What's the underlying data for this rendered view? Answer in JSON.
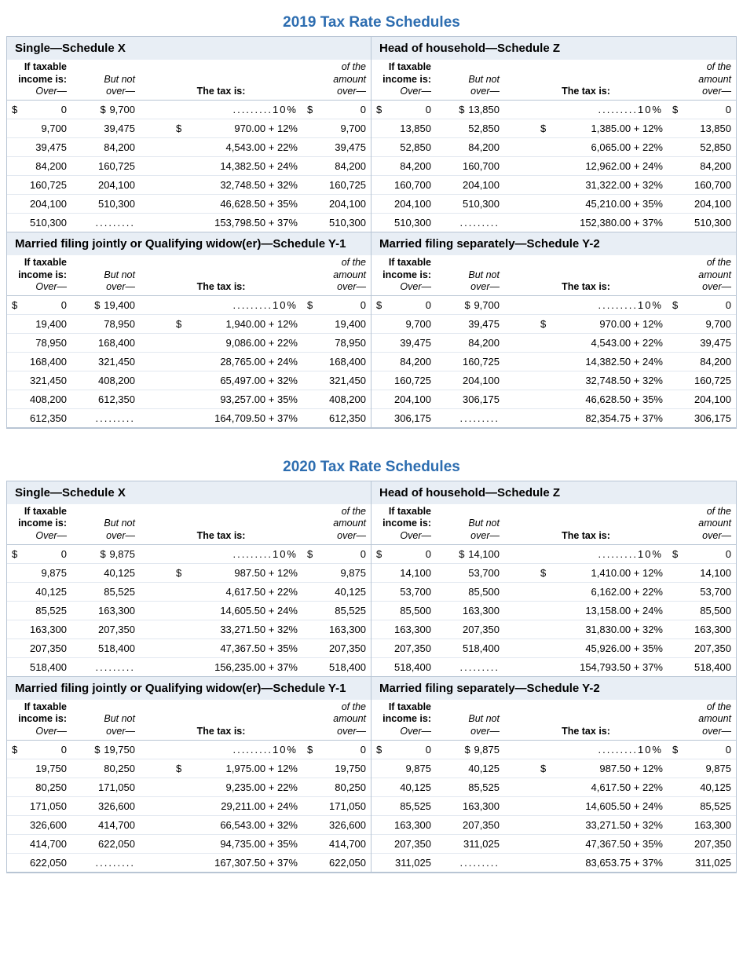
{
  "title_color": "#2d6db0",
  "header_bg": "#e8eef5",
  "border_color": "#b8c5d4",
  "row_border": "#e2e8f0",
  "col_header": {
    "over_line1": "If taxable",
    "over_line2": "income is:",
    "over_line3": "Over—",
    "notover_line1": "But not",
    "notover_line2": "over—",
    "tax": "The tax is:",
    "amt_line1": "of the",
    "amt_line2": "amount",
    "amt_line3": "over—"
  },
  "years": [
    {
      "title": "2019 Tax Rate Schedules",
      "panels": [
        {
          "name": "Single—Schedule X",
          "rows": [
            {
              "over": "0",
              "over_ds": true,
              "notover": "9,700",
              "notover_ds": true,
              "tax": ".........10%",
              "tax_ds": false,
              "amt": "0",
              "amt_ds": true
            },
            {
              "over": "9,700",
              "notover": "39,475",
              "tax": "970.00 + 12%",
              "tax_ds": true,
              "amt": "9,700"
            },
            {
              "over": "39,475",
              "notover": "84,200",
              "tax": "4,543.00 + 22%",
              "amt": "39,475"
            },
            {
              "over": "84,200",
              "notover": "160,725",
              "tax": "14,382.50 + 24%",
              "amt": "84,200"
            },
            {
              "over": "160,725",
              "notover": "204,100",
              "tax": "32,748.50 + 32%",
              "amt": "160,725"
            },
            {
              "over": "204,100",
              "notover": "510,300",
              "tax": "46,628.50 + 35%",
              "amt": "204,100"
            },
            {
              "over": "510,300",
              "notover": ".........",
              "tax": "153,798.50 + 37%",
              "amt": "510,300"
            }
          ]
        },
        {
          "name": "Head of household—Schedule Z",
          "rows": [
            {
              "over": "0",
              "over_ds": true,
              "notover": "13,850",
              "notover_ds": true,
              "tax": ".........10%",
              "amt": "0",
              "amt_ds": true
            },
            {
              "over": "13,850",
              "notover": "52,850",
              "tax": "1,385.00 + 12%",
              "tax_ds": true,
              "amt": "13,850"
            },
            {
              "over": "52,850",
              "notover": "84,200",
              "tax": "6,065.00 + 22%",
              "amt": "52,850"
            },
            {
              "over": "84,200",
              "notover": "160,700",
              "tax": "12,962.00 + 24%",
              "amt": "84,200"
            },
            {
              "over": "160,700",
              "notover": "204,100",
              "tax": "31,322.00 + 32%",
              "amt": "160,700"
            },
            {
              "over": "204,100",
              "notover": "510,300",
              "tax": "45,210.00 + 35%",
              "amt": "204,100"
            },
            {
              "over": "510,300",
              "notover": ".........",
              "tax": "152,380.00 + 37%",
              "amt": "510,300"
            }
          ]
        },
        {
          "name": "Married filing jointly or Qualifying widow(er)—Schedule Y-1",
          "rows": [
            {
              "over": "0",
              "over_ds": true,
              "notover": "19,400",
              "notover_ds": true,
              "tax": ".........10%",
              "amt": "0",
              "amt_ds": true
            },
            {
              "over": "19,400",
              "notover": "78,950",
              "tax": "1,940.00 + 12%",
              "tax_ds": true,
              "amt": "19,400"
            },
            {
              "over": "78,950",
              "notover": "168,400",
              "tax": "9,086.00 + 22%",
              "amt": "78,950"
            },
            {
              "over": "168,400",
              "notover": "321,450",
              "tax": "28,765.00 + 24%",
              "amt": "168,400"
            },
            {
              "over": "321,450",
              "notover": "408,200",
              "tax": "65,497.00 + 32%",
              "amt": "321,450"
            },
            {
              "over": "408,200",
              "notover": "612,350",
              "tax": "93,257.00 + 35%",
              "amt": "408,200"
            },
            {
              "over": "612,350",
              "notover": ".........",
              "tax": "164,709.50 + 37%",
              "amt": "612,350"
            }
          ]
        },
        {
          "name": "Married filing separately—Schedule Y-2",
          "rows": [
            {
              "over": "0",
              "over_ds": true,
              "notover": "9,700",
              "notover_ds": true,
              "tax": ".........10%",
              "amt": "0",
              "amt_ds": true
            },
            {
              "over": "9,700",
              "notover": "39,475",
              "tax": "970.00 + 12%",
              "tax_ds": true,
              "amt": "9,700"
            },
            {
              "over": "39,475",
              "notover": "84,200",
              "tax": "4,543.00 + 22%",
              "amt": "39,475"
            },
            {
              "over": "84,200",
              "notover": "160,725",
              "tax": "14,382.50 + 24%",
              "amt": "84,200"
            },
            {
              "over": "160,725",
              "notover": "204,100",
              "tax": "32,748.50 + 32%",
              "amt": "160,725"
            },
            {
              "over": "204,100",
              "notover": "306,175",
              "tax": "46,628.50 + 35%",
              "amt": "204,100"
            },
            {
              "over": "306,175",
              "notover": ".........",
              "tax": "82,354.75 + 37%",
              "amt": "306,175"
            }
          ]
        }
      ]
    },
    {
      "title": "2020 Tax Rate Schedules",
      "panels": [
        {
          "name": "Single—Schedule X",
          "rows": [
            {
              "over": "0",
              "over_ds": true,
              "notover": "9,875",
              "notover_ds": true,
              "tax": ".........10%",
              "amt": "0",
              "amt_ds": true
            },
            {
              "over": "9,875",
              "notover": "40,125",
              "tax": "987.50 + 12%",
              "tax_ds": true,
              "amt": "9,875"
            },
            {
              "over": "40,125",
              "notover": "85,525",
              "tax": "4,617.50 + 22%",
              "amt": "40,125"
            },
            {
              "over": "85,525",
              "notover": "163,300",
              "tax": "14,605.50 + 24%",
              "amt": "85,525"
            },
            {
              "over": "163,300",
              "notover": "207,350",
              "tax": "33,271.50 + 32%",
              "amt": "163,300"
            },
            {
              "over": "207,350",
              "notover": "518,400",
              "tax": "47,367.50 + 35%",
              "amt": "207,350"
            },
            {
              "over": "518,400",
              "notover": ".........",
              "tax": "156,235.00 + 37%",
              "amt": "518,400"
            }
          ]
        },
        {
          "name": "Head of household—Schedule Z",
          "rows": [
            {
              "over": "0",
              "over_ds": true,
              "notover": "14,100",
              "notover_ds": true,
              "tax": ".........10%",
              "amt": "0",
              "amt_ds": true
            },
            {
              "over": "14,100",
              "notover": "53,700",
              "tax": "1,410.00 + 12%",
              "tax_ds": true,
              "amt": "14,100"
            },
            {
              "over": "53,700",
              "notover": "85,500",
              "tax": "6,162.00 + 22%",
              "amt": "53,700"
            },
            {
              "over": "85,500",
              "notover": "163,300",
              "tax": "13,158.00 + 24%",
              "amt": "85,500"
            },
            {
              "over": "163,300",
              "notover": "207,350",
              "tax": "31,830.00 + 32%",
              "amt": "163,300"
            },
            {
              "over": "207,350",
              "notover": "518,400",
              "tax": "45,926.00 + 35%",
              "amt": "207,350"
            },
            {
              "over": "518,400",
              "notover": ".........",
              "tax": "154,793.50 + 37%",
              "amt": "518,400"
            }
          ]
        },
        {
          "name": "Married filing jointly or Qualifying widow(er)—Schedule Y-1",
          "rows": [
            {
              "over": "0",
              "over_ds": true,
              "notover": "19,750",
              "notover_ds": true,
              "tax": ".........10%",
              "amt": "0",
              "amt_ds": true
            },
            {
              "over": "19,750",
              "notover": "80,250",
              "tax": "1,975.00 + 12%",
              "tax_ds": true,
              "amt": "19,750"
            },
            {
              "over": "80,250",
              "notover": "171,050",
              "tax": "9,235.00 + 22%",
              "amt": "80,250"
            },
            {
              "over": "171,050",
              "notover": "326,600",
              "tax": "29,211.00 + 24%",
              "amt": "171,050"
            },
            {
              "over": "326,600",
              "notover": "414,700",
              "tax": "66,543.00 + 32%",
              "amt": "326,600"
            },
            {
              "over": "414,700",
              "notover": "622,050",
              "tax": "94,735.00 + 35%",
              "amt": "414,700"
            },
            {
              "over": "622,050",
              "notover": ".........",
              "tax": "167,307.50 + 37%",
              "amt": "622,050"
            }
          ]
        },
        {
          "name": "Married filing separately—Schedule Y-2",
          "rows": [
            {
              "over": "0",
              "over_ds": true,
              "notover": "9,875",
              "notover_ds": true,
              "tax": ".........10%",
              "amt": "0",
              "amt_ds": true
            },
            {
              "over": "9,875",
              "notover": "40,125",
              "tax": "987.50 + 12%",
              "tax_ds": true,
              "amt": "9,875"
            },
            {
              "over": "40,125",
              "notover": "85,525",
              "tax": "4,617.50 + 22%",
              "amt": "40,125"
            },
            {
              "over": "85,525",
              "notover": "163,300",
              "tax": "14,605.50 + 24%",
              "amt": "85,525"
            },
            {
              "over": "163,300",
              "notover": "207,350",
              "tax": "33,271.50 + 32%",
              "amt": "163,300"
            },
            {
              "over": "207,350",
              "notover": "311,025",
              "tax": "47,367.50 + 35%",
              "amt": "207,350"
            },
            {
              "over": "311,025",
              "notover": ".........",
              "tax": "83,653.75 + 37%",
              "amt": "311,025"
            }
          ]
        }
      ]
    }
  ]
}
